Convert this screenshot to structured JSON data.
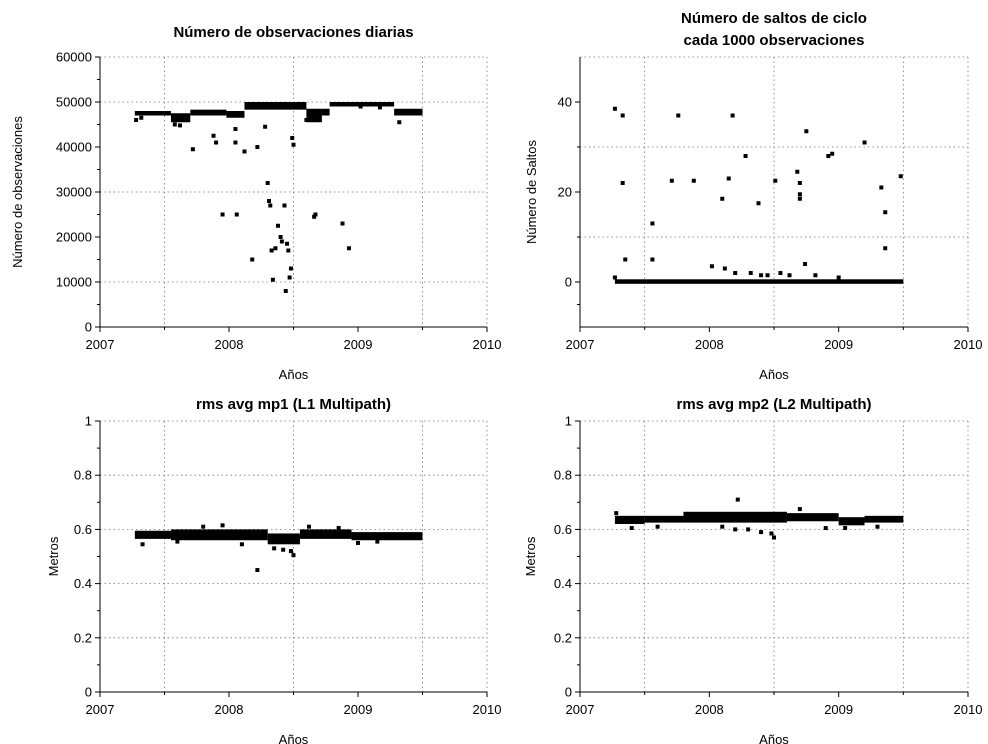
{
  "chart_data": [
    {
      "type": "scatter",
      "title": "Número de observaciones diarias",
      "title2": "",
      "xlabel": "Años",
      "ylabel": "Número de observaciones",
      "xlim": [
        2007,
        2010
      ],
      "ylim": [
        0,
        60000
      ],
      "xticks": [
        2007,
        2008,
        2009,
        2010
      ],
      "yticks": [
        0,
        10000,
        20000,
        30000,
        40000,
        50000,
        60000
      ],
      "xgrid": [
        2007.5,
        2008.5,
        2009.5
      ],
      "ygrid": [
        10000,
        30000,
        50000
      ],
      "grid": true,
      "series": [
        {
          "role": "band",
          "segments": [
            {
              "x": [
                2007.27,
                2007.55
              ],
              "y": [
                47000,
                48000
              ]
            },
            {
              "x": [
                2007.55,
                2007.7
              ],
              "y": [
                45500,
                47500
              ]
            },
            {
              "x": [
                2007.7,
                2007.98
              ],
              "y": [
                47000,
                48300
              ]
            },
            {
              "x": [
                2007.98,
                2008.12
              ],
              "y": [
                46500,
                48000
              ]
            },
            {
              "x": [
                2008.12,
                2008.6
              ],
              "y": [
                48300,
                50000
              ]
            },
            {
              "x": [
                2008.6,
                2008.72
              ],
              "y": [
                45500,
                48500
              ]
            },
            {
              "x": [
                2008.72,
                2008.78
              ],
              "y": [
                47000,
                48500
              ]
            },
            {
              "x": [
                2008.78,
                2009.28
              ],
              "y": [
                49000,
                50000
              ]
            },
            {
              "x": [
                2009.28,
                2009.5
              ],
              "y": [
                47000,
                48500
              ]
            }
          ]
        },
        {
          "role": "points",
          "points": [
            [
              2007.28,
              46000
            ],
            [
              2007.32,
              46500
            ],
            [
              2007.58,
              45000
            ],
            [
              2007.62,
              44800
            ],
            [
              2007.72,
              39500
            ],
            [
              2007.88,
              42500
            ],
            [
              2007.9,
              41000
            ],
            [
              2008.05,
              44000
            ],
            [
              2007.95,
              25000
            ],
            [
              2008.06,
              25000
            ],
            [
              2008.05,
              41000
            ],
            [
              2008.12,
              39000
            ],
            [
              2008.18,
              15000
            ],
            [
              2008.22,
              40000
            ],
            [
              2008.28,
              44500
            ],
            [
              2008.3,
              32000
            ],
            [
              2008.31,
              28000
            ],
            [
              2008.32,
              27000
            ],
            [
              2008.33,
              17000
            ],
            [
              2008.34,
              10500
            ],
            [
              2008.36,
              17500
            ],
            [
              2008.38,
              22500
            ],
            [
              2008.4,
              20000
            ],
            [
              2008.41,
              19000
            ],
            [
              2008.43,
              27000
            ],
            [
              2008.45,
              18500
            ],
            [
              2008.46,
              17000
            ],
            [
              2008.47,
              11000
            ],
            [
              2008.48,
              13000
            ],
            [
              2008.49,
              42000
            ],
            [
              2008.5,
              40500
            ],
            [
              2008.44,
              8000
            ],
            [
              2008.6,
              46000
            ],
            [
              2008.66,
              24500
            ],
            [
              2008.67,
              25000
            ],
            [
              2008.88,
              23000
            ],
            [
              2008.93,
              17500
            ],
            [
              2009.02,
              49000
            ],
            [
              2009.17,
              48800
            ],
            [
              2009.32,
              45500
            ]
          ]
        }
      ]
    },
    {
      "type": "scatter",
      "title": "Número de saltos de ciclo",
      "title2": "cada 1000 observaciones",
      "xlabel": "Años",
      "ylabel": "Número de Saltos",
      "xlim": [
        2007,
        2010
      ],
      "ylim": [
        -10,
        50
      ],
      "xticks": [
        2007,
        2008,
        2009,
        2010
      ],
      "yticks": [
        0,
        20,
        40
      ],
      "xgrid": [
        2007.5,
        2008.5,
        2009.5
      ],
      "ygrid": [
        10,
        30
      ],
      "grid": true,
      "series": [
        {
          "role": "band",
          "segments": [
            {
              "x": [
                2007.27,
                2009.5
              ],
              "y": [
                -0.4,
                0.6
              ]
            }
          ]
        },
        {
          "role": "points",
          "points": [
            [
              2007.27,
              38.5
            ],
            [
              2007.27,
              1.0
            ],
            [
              2007.33,
              37.0
            ],
            [
              2007.33,
              22.0
            ],
            [
              2007.35,
              5.0
            ],
            [
              2007.56,
              13.0
            ],
            [
              2007.56,
              5.0
            ],
            [
              2007.71,
              22.5
            ],
            [
              2007.76,
              37.0
            ],
            [
              2007.88,
              22.5
            ],
            [
              2008.02,
              3.5
            ],
            [
              2008.1,
              18.5
            ],
            [
              2008.12,
              3.0
            ],
            [
              2008.15,
              23.0
            ],
            [
              2008.18,
              37.0
            ],
            [
              2008.2,
              2.0
            ],
            [
              2008.28,
              28.0
            ],
            [
              2008.32,
              2.0
            ],
            [
              2008.38,
              17.5
            ],
            [
              2008.4,
              1.5
            ],
            [
              2008.45,
              1.5
            ],
            [
              2008.51,
              22.5
            ],
            [
              2008.55,
              2.0
            ],
            [
              2008.62,
              1.5
            ],
            [
              2008.68,
              24.5
            ],
            [
              2008.7,
              22.0
            ],
            [
              2008.7,
              19.5
            ],
            [
              2008.7,
              18.5
            ],
            [
              2008.74,
              4.0
            ],
            [
              2008.75,
              33.5
            ],
            [
              2008.82,
              1.5
            ],
            [
              2008.92,
              28.0
            ],
            [
              2008.95,
              28.5
            ],
            [
              2009.0,
              1.0
            ],
            [
              2009.2,
              31.0
            ],
            [
              2009.33,
              21.0
            ],
            [
              2009.36,
              15.5
            ],
            [
              2009.36,
              7.5
            ],
            [
              2009.48,
              23.5
            ]
          ]
        }
      ]
    },
    {
      "type": "scatter",
      "title": "rms avg mp1 (L1 Multipath)",
      "title2": "",
      "xlabel": "Años",
      "ylabel": "Metros",
      "xlim": [
        2007,
        2010
      ],
      "ylim": [
        0,
        1
      ],
      "xticks": [
        2007,
        2008,
        2009,
        2010
      ],
      "yticks": [
        0,
        0.2,
        0.4,
        0.6,
        0.8,
        1
      ],
      "xgrid": [
        2007.5,
        2008.5,
        2009.5
      ],
      "ygrid": [
        0.2,
        0.4,
        0.6,
        0.8
      ],
      "grid": true,
      "series": [
        {
          "role": "band",
          "segments": [
            {
              "x": [
                2007.27,
                2007.55
              ],
              "y": [
                0.565,
                0.595
              ]
            },
            {
              "x": [
                2007.55,
                2008.3
              ],
              "y": [
                0.56,
                0.6
              ]
            },
            {
              "x": [
                2008.3,
                2008.55
              ],
              "y": [
                0.545,
                0.585
              ]
            },
            {
              "x": [
                2008.55,
                2008.95
              ],
              "y": [
                0.565,
                0.6
              ]
            },
            {
              "x": [
                2008.95,
                2009.5
              ],
              "y": [
                0.56,
                0.59
              ]
            }
          ]
        },
        {
          "role": "points",
          "points": [
            [
              2007.33,
              0.545
            ],
            [
              2007.6,
              0.555
            ],
            [
              2007.8,
              0.61
            ],
            [
              2007.95,
              0.615
            ],
            [
              2008.1,
              0.545
            ],
            [
              2008.22,
              0.45
            ],
            [
              2008.35,
              0.53
            ],
            [
              2008.42,
              0.525
            ],
            [
              2008.48,
              0.52
            ],
            [
              2008.5,
              0.505
            ],
            [
              2008.62,
              0.61
            ],
            [
              2008.85,
              0.605
            ],
            [
              2009.0,
              0.55
            ],
            [
              2009.15,
              0.555
            ]
          ]
        }
      ]
    },
    {
      "type": "scatter",
      "title": "rms avg mp2 (L2 Multipath)",
      "title2": "",
      "xlabel": "Años",
      "ylabel": "Metros",
      "xlim": [
        2007,
        2010
      ],
      "ylim": [
        0,
        1
      ],
      "xticks": [
        2007,
        2008,
        2009,
        2010
      ],
      "yticks": [
        0,
        0.2,
        0.4,
        0.6,
        0.8,
        1
      ],
      "xgrid": [
        2007.5,
        2008.5,
        2009.5
      ],
      "ygrid": [
        0.2,
        0.4,
        0.6,
        0.8
      ],
      "grid": true,
      "series": [
        {
          "role": "band",
          "segments": [
            {
              "x": [
                2007.27,
                2007.5
              ],
              "y": [
                0.62,
                0.65
              ]
            },
            {
              "x": [
                2007.5,
                2007.8
              ],
              "y": [
                0.625,
                0.65
              ]
            },
            {
              "x": [
                2007.8,
                2008.6
              ],
              "y": [
                0.625,
                0.665
              ]
            },
            {
              "x": [
                2008.6,
                2009.0
              ],
              "y": [
                0.63,
                0.66
              ]
            },
            {
              "x": [
                2009.0,
                2009.2
              ],
              "y": [
                0.615,
                0.645
              ]
            },
            {
              "x": [
                2009.2,
                2009.5
              ],
              "y": [
                0.625,
                0.65
              ]
            }
          ]
        },
        {
          "role": "points",
          "points": [
            [
              2007.28,
              0.66
            ],
            [
              2007.4,
              0.605
            ],
            [
              2007.6,
              0.61
            ],
            [
              2008.1,
              0.61
            ],
            [
              2008.2,
              0.6
            ],
            [
              2008.22,
              0.71
            ],
            [
              2008.3,
              0.6
            ],
            [
              2008.4,
              0.59
            ],
            [
              2008.48,
              0.585
            ],
            [
              2008.5,
              0.57
            ],
            [
              2008.7,
              0.675
            ],
            [
              2008.9,
              0.605
            ],
            [
              2009.05,
              0.605
            ],
            [
              2009.3,
              0.61
            ]
          ]
        }
      ]
    }
  ]
}
